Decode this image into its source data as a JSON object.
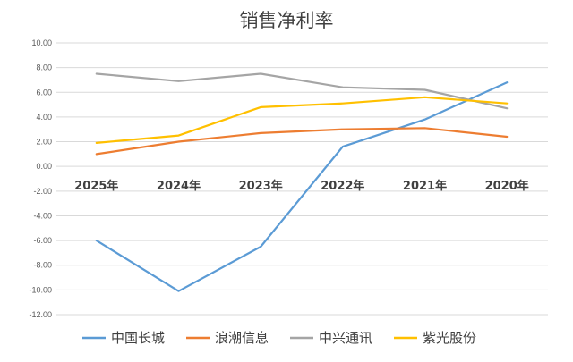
{
  "chart_data": {
    "type": "line",
    "title": "销售净利率",
    "categories": [
      "2025年",
      "2024年",
      "2023年",
      "2022年",
      "2021年",
      "2020年"
    ],
    "ylim": [
      -12,
      10
    ],
    "yticks": [
      "10.00",
      "8.00",
      "6.00",
      "4.00",
      "2.00",
      "0.00",
      "-2.00",
      "-4.00",
      "-6.00",
      "-8.00",
      "-10.00",
      "-12.00"
    ],
    "grid": true,
    "legend_position": "bottom",
    "series": [
      {
        "name": "中国长城",
        "color": "#5B9BD5",
        "values": [
          -6.0,
          -10.1,
          -6.5,
          1.6,
          3.8,
          6.8
        ]
      },
      {
        "name": "浪潮信息",
        "color": "#ED7D31",
        "values": [
          1.0,
          2.0,
          2.7,
          3.0,
          3.1,
          2.4
        ]
      },
      {
        "name": "中兴通讯",
        "color": "#A5A5A5",
        "values": [
          7.5,
          6.9,
          7.5,
          6.4,
          6.2,
          4.7
        ]
      },
      {
        "name": "紫光股份",
        "color": "#FFC000",
        "values": [
          1.9,
          2.5,
          4.8,
          5.1,
          5.6,
          5.1
        ]
      }
    ]
  }
}
